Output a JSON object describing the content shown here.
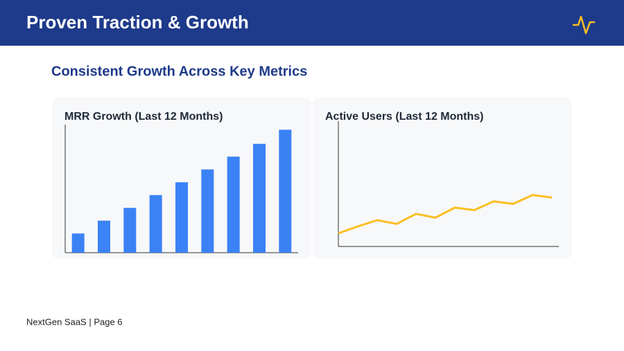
{
  "header": {
    "title": "Proven Traction & Growth"
  },
  "subtitle": "Consistent Growth Across Key Metrics",
  "chart_data": [
    {
      "type": "bar",
      "title": "MRR Growth (Last 12 Months)",
      "color": "#3b82f6",
      "categories": [
        null,
        null,
        null,
        null,
        null,
        null,
        null,
        null,
        null
      ],
      "values": [
        15,
        25,
        35,
        45,
        55,
        65,
        75,
        85,
        96
      ],
      "ylim": [
        0,
        100
      ]
    },
    {
      "type": "line",
      "title": "Active Users (Last 12 Months)",
      "color": "#fbbf24",
      "categories": [
        null,
        null,
        null,
        null,
        null,
        null,
        null,
        null,
        null,
        null,
        null,
        null
      ],
      "values": [
        10.5,
        16,
        21,
        18,
        26,
        23,
        31,
        29,
        36,
        34,
        41,
        39
      ],
      "ylim": [
        0,
        100
      ]
    }
  ],
  "footer": "NextGen SaaS | Page 6"
}
